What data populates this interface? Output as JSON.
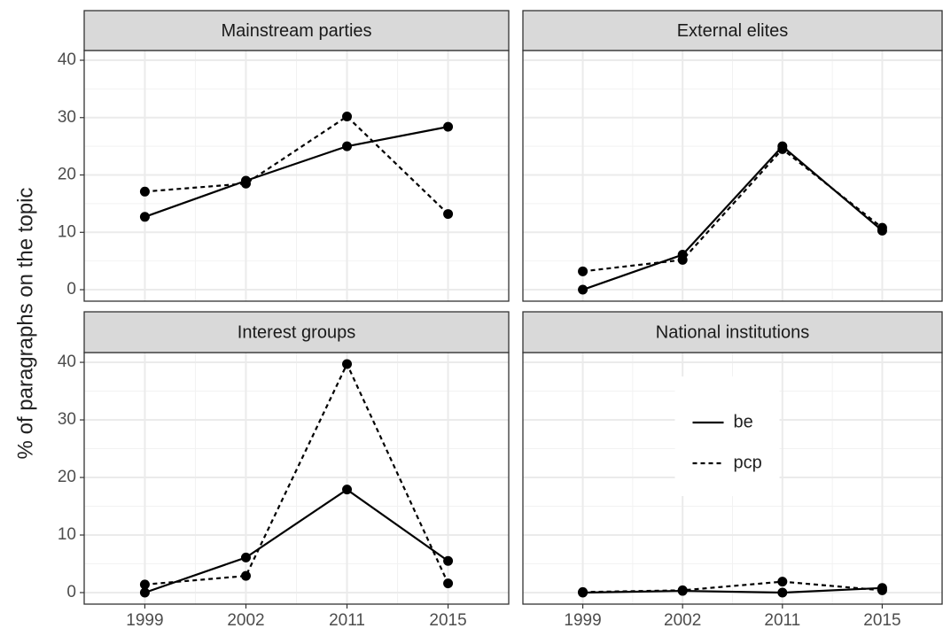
{
  "chart_data": [
    {
      "type": "line",
      "title": "Mainstream parties",
      "ylabel": "% of paragraphs on the topic",
      "series": [
        {
          "color": "#000000",
          "dash": false,
          "values": [
            12.7,
            19,
            25,
            28.4
          ]
        },
        {
          "color": "#000000",
          "dash": true,
          "values": [
            17.1,
            18.5,
            30.2,
            13.2
          ]
        }
      ],
      "ylim": [
        -2,
        41.7
      ],
      "yticks": [
        0,
        10,
        20,
        30,
        40
      ],
      "grid": true
    },
    {
      "type": "line",
      "title": "External elites",
      "series": [
        {
          "color": "#000000",
          "dash": false,
          "values": [
            0,
            6.1,
            25,
            10.3
          ]
        },
        {
          "color": "#000000",
          "dash": true,
          "values": [
            3.2,
            5.2,
            24.5,
            10.8
          ]
        }
      ],
      "ylim": [
        -2,
        41.7
      ],
      "yticks": [
        0,
        10,
        20,
        30,
        40
      ],
      "grid": true
    },
    {
      "type": "line",
      "title": "Interest groups",
      "categories": [
        "1999",
        "2002",
        "2011",
        "2015"
      ],
      "series": [
        {
          "color": "#000000",
          "dash": false,
          "values": [
            0,
            6.1,
            17.9,
            5.5
          ]
        },
        {
          "color": "#000000",
          "dash": true,
          "values": [
            1.4,
            2.9,
            39.7,
            1.6
          ]
        }
      ],
      "ylim": [
        -2,
        41.7
      ],
      "yticks": [
        0,
        10,
        20,
        30,
        40
      ],
      "grid": true
    },
    {
      "type": "line",
      "title": "National institutions",
      "categories": [
        "1999",
        "2002",
        "2011",
        "2015"
      ],
      "series": [
        {
          "name": "be",
          "color": "#000000",
          "dash": false,
          "values": [
            0,
            0.3,
            0,
            0.8
          ]
        },
        {
          "name": "pcp",
          "color": "#000000",
          "dash": true,
          "values": [
            0.1,
            0.4,
            1.9,
            0.4
          ]
        }
      ],
      "ylim": [
        -2,
        41.7
      ],
      "yticks": [
        0,
        10,
        20,
        30,
        40
      ],
      "grid": true,
      "legend": "center"
    }
  ]
}
